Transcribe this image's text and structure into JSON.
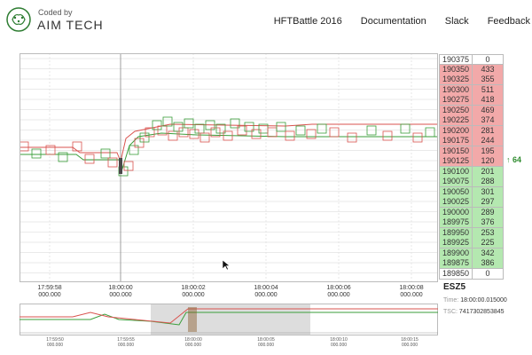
{
  "header": {
    "logo_small": "Coded by",
    "logo_big": "AIM TECH",
    "nav": [
      "HFTBattle 2016",
      "Documentation",
      "Slack",
      "Feedback"
    ]
  },
  "ladder": [
    {
      "price": "190375",
      "qty": "0",
      "side": "plain"
    },
    {
      "price": "190350",
      "qty": "433",
      "side": "ask"
    },
    {
      "price": "190325",
      "qty": "355",
      "side": "ask"
    },
    {
      "price": "190300",
      "qty": "511",
      "side": "ask"
    },
    {
      "price": "190275",
      "qty": "418",
      "side": "ask"
    },
    {
      "price": "190250",
      "qty": "469",
      "side": "ask"
    },
    {
      "price": "190225",
      "qty": "374",
      "side": "ask"
    },
    {
      "price": "190200",
      "qty": "281",
      "side": "ask"
    },
    {
      "price": "190175",
      "qty": "244",
      "side": "ask"
    },
    {
      "price": "190150",
      "qty": "195",
      "side": "ask"
    },
    {
      "price": "190125",
      "qty": "120",
      "side": "ask"
    },
    {
      "price": "190100",
      "qty": "201",
      "side": "bid"
    },
    {
      "price": "190075",
      "qty": "288",
      "side": "bid"
    },
    {
      "price": "190050",
      "qty": "301",
      "side": "bid"
    },
    {
      "price": "190025",
      "qty": "297",
      "side": "bid"
    },
    {
      "price": "190000",
      "qty": "289",
      "side": "bid"
    },
    {
      "price": "189975",
      "qty": "376",
      "side": "bid"
    },
    {
      "price": "189950",
      "qty": "253",
      "side": "bid"
    },
    {
      "price": "189925",
      "qty": "225",
      "side": "bid"
    },
    {
      "price": "189900",
      "qty": "342",
      "side": "bid"
    },
    {
      "price": "189875",
      "qty": "386",
      "side": "bid"
    },
    {
      "price": "189850",
      "qty": "0",
      "side": "plain"
    }
  ],
  "spread_indicator": "↑ 64",
  "x_axis": [
    {
      "time": "17:59:58",
      "sub": "000.000"
    },
    {
      "time": "18:00:00",
      "sub": "000.000"
    },
    {
      "time": "18:00:02",
      "sub": "000.000"
    },
    {
      "time": "18:00:04",
      "sub": "000.000"
    },
    {
      "time": "18:00:06",
      "sub": "000.000"
    },
    {
      "time": "18:00:08",
      "sub": "000.000"
    }
  ],
  "minimap_axis": [
    {
      "time": "17:59:50",
      "sub": "000.000"
    },
    {
      "time": "17:59:55",
      "sub": "000.000"
    },
    {
      "time": "18:00:00",
      "sub": "000.000"
    },
    {
      "time": "18:00:05",
      "sub": "000.000"
    },
    {
      "time": "18:00:10",
      "sub": "000.000"
    },
    {
      "time": "18:00:15",
      "sub": "000.000"
    }
  ],
  "info": {
    "symbol": "ESZ5",
    "time_label": "Time:",
    "time_value": "18:00:00.015000",
    "tsc_label": "TSC:",
    "tsc_value": "7417302853845"
  },
  "colors": {
    "ask": "#f2a9a9",
    "bid": "#b4e8b0",
    "ask_line": "#d9534f",
    "bid_line": "#3a9e3a",
    "spread": "#2e8b2e"
  }
}
